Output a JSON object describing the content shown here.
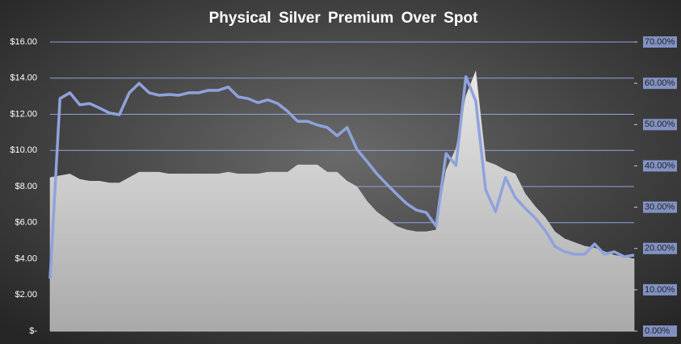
{
  "chart_data": {
    "type": "combo",
    "title": "Physical Silver Premium Over Spot",
    "categories": [
      null,
      null,
      null,
      null,
      null,
      null,
      null,
      null,
      null,
      null,
      null,
      null,
      null,
      null,
      null,
      null,
      null,
      null,
      null,
      null,
      null,
      null,
      null,
      null,
      null,
      null,
      null,
      null,
      null,
      null,
      null,
      null,
      null,
      null,
      null,
      null,
      null,
      null,
      null,
      null,
      null,
      null,
      null,
      null,
      null,
      null,
      null,
      null,
      null,
      null,
      null,
      null,
      null,
      null,
      null,
      null,
      null,
      null,
      null,
      null
    ],
    "series": [
      {
        "type": "area",
        "color": "#d0d0d0",
        "values": [
          8.5,
          8.6,
          8.7,
          8.4,
          8.3,
          8.3,
          8.2,
          8.2,
          8.5,
          8.8,
          8.8,
          8.8,
          8.7,
          8.7,
          8.7,
          8.7,
          8.7,
          8.7,
          8.8,
          8.7,
          8.7,
          8.7,
          8.8,
          8.8,
          8.8,
          9.2,
          9.2,
          9.2,
          8.8,
          8.8,
          8.3,
          8.0,
          7.2,
          6.6,
          6.2,
          5.8,
          5.6,
          5.5,
          5.5,
          5.6,
          8.9,
          10.1,
          13.0,
          14.4,
          9.4,
          9.2,
          8.9,
          8.7,
          7.6,
          6.9,
          6.3,
          5.5,
          5.1,
          4.9,
          4.7,
          4.6,
          4.4,
          4.2,
          4.1,
          4.0
        ]
      },
      {
        "type": "line",
        "axis": "y2",
        "color": "#8fa2dc",
        "values": [
          12.7,
          56.3,
          57.7,
          54.8,
          55.1,
          54.0,
          52.8,
          52.4,
          57.7,
          60.0,
          57.7,
          57.1,
          57.3,
          57.1,
          57.7,
          57.7,
          58.3,
          58.3,
          59.1,
          56.7,
          56.3,
          55.3,
          56.0,
          55.1,
          53.2,
          50.8,
          50.8,
          49.9,
          49.3,
          47.3,
          49.3,
          44.0,
          41.1,
          38.1,
          35.6,
          33.2,
          30.9,
          29.3,
          28.7,
          25.4,
          43.0,
          40.1,
          61.6,
          55.7,
          34.2,
          28.9,
          37.2,
          32.3,
          29.7,
          27.4,
          24.4,
          20.5,
          19.2,
          18.6,
          18.6,
          21.1,
          18.6,
          19.2,
          18.0,
          18.4
        ]
      }
    ],
    "ylim": [
      0,
      16
    ],
    "yticks": [
      {
        "value": 0,
        "label": "$-"
      },
      {
        "value": 2,
        "label": "$2.00"
      },
      {
        "value": 4,
        "label": "$4.00"
      },
      {
        "value": 6,
        "label": "$6.00"
      },
      {
        "value": 8,
        "label": "$8.00"
      },
      {
        "value": 10,
        "label": "$10.00"
      },
      {
        "value": 12,
        "label": "$12.00"
      },
      {
        "value": 14,
        "label": "$14.00"
      },
      {
        "value": 16,
        "label": "$16.00"
      }
    ],
    "y2lim": [
      0,
      70
    ],
    "y2ticks": [
      {
        "value": 0,
        "label": "0.00%"
      },
      {
        "value": 10,
        "label": "10.00%"
      },
      {
        "value": 20,
        "label": "20.00%"
      },
      {
        "value": 30,
        "label": "30.00%"
      },
      {
        "value": 40,
        "label": "40.00%"
      },
      {
        "value": 50,
        "label": "50.00%"
      },
      {
        "value": 60,
        "label": "60.00%"
      },
      {
        "value": 70,
        "label": "70.00%"
      }
    ],
    "grid": true,
    "grid_color": "#8fa2dc"
  }
}
